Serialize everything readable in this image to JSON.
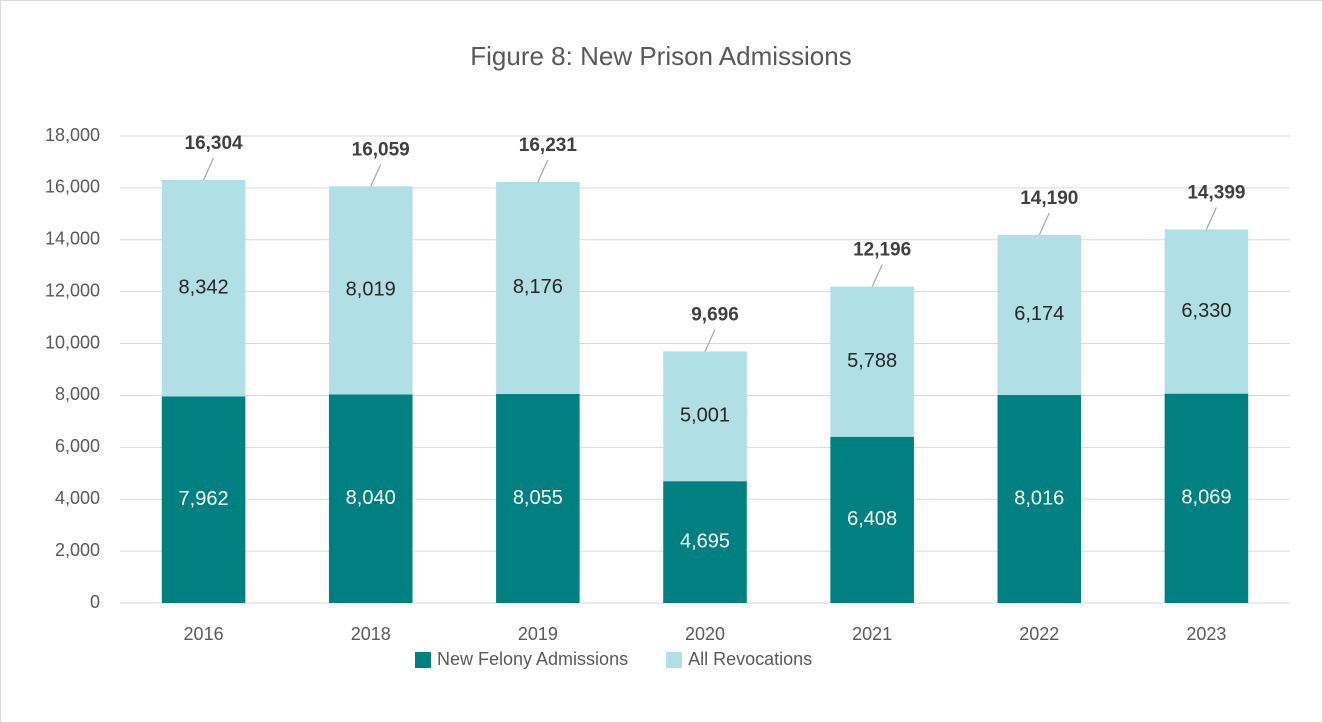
{
  "chart_data": {
    "type": "stacked_bar",
    "title": "Figure 8: New Prison Admissions",
    "categories": [
      "2016",
      "2018",
      "2019",
      "2020",
      "2021",
      "2022",
      "2023"
    ],
    "series": [
      {
        "name": "New Felony Admissions",
        "color": "#008080",
        "values": [
          7962,
          8040,
          8055,
          4695,
          6408,
          8016,
          8069
        ],
        "value_labels": [
          "7,962",
          "8,040",
          "8,055",
          "4,695",
          "6,408",
          "8,016",
          "8,069"
        ]
      },
      {
        "name": "All Revocations",
        "color": "#b0dfe5",
        "values": [
          8342,
          8019,
          8176,
          5001,
          5788,
          6174,
          6330
        ],
        "value_labels": [
          "8,342",
          "8,019",
          "8,176",
          "5,001",
          "5,788",
          "6,174",
          "6,330"
        ]
      }
    ],
    "totals": [
      16304,
      16059,
      16231,
      9696,
      12196,
      14190,
      14399
    ],
    "total_labels": [
      "16,304",
      "16,059",
      "16,231",
      "9,696",
      "12,196",
      "14,190",
      "14,399"
    ],
    "ylim": [
      0,
      18000
    ],
    "yticks": [
      0,
      {
        "value": 2000,
        "label": "2,000"
      },
      {
        "value": 4000,
        "label": "4,000"
      },
      {
        "value": 6000,
        "label": "6,000"
      },
      {
        "value": 8000,
        "label": "8,000"
      },
      {
        "value": 10000,
        "label": "10,000"
      },
      {
        "value": 12000,
        "label": "12,000"
      },
      {
        "value": 14000,
        "label": "14,000"
      },
      {
        "value": 16000,
        "label": "16,000"
      },
      {
        "value": 18000,
        "label": "18,000"
      }
    ],
    "grid": true,
    "legend": "bottom"
  }
}
